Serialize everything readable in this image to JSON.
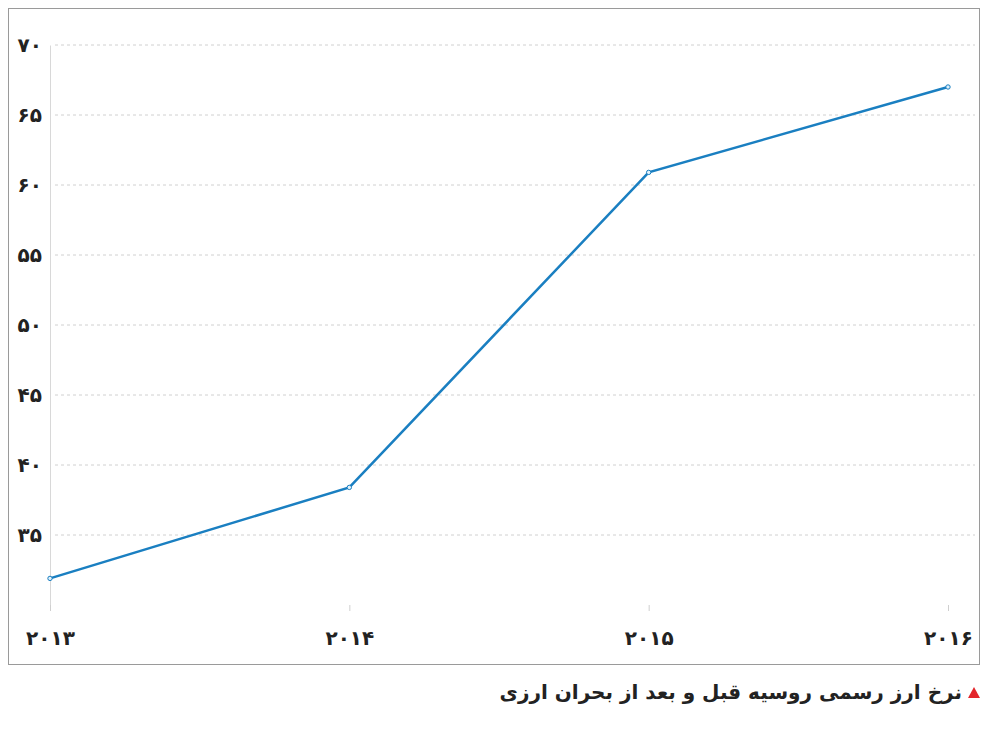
{
  "chart_data": {
    "type": "line",
    "title": "نرخ ارز رسمی روسیه قبل و بعد از بحران ارزی",
    "categories": [
      "۲۰۱۳",
      "۲۰۱۴",
      "۲۰۱۵",
      "۲۰۱۶"
    ],
    "values": [
      31.9,
      38.4,
      60.9,
      67.0
    ],
    "color": "#1a7fc1",
    "marker": "circle",
    "ylim": [
      30,
      70
    ],
    "yticks": [
      {
        "value": 35,
        "label": "۳۵"
      },
      {
        "value": 40,
        "label": "۴۰"
      },
      {
        "value": 45,
        "label": "۴۵"
      },
      {
        "value": 50,
        "label": "۵۰"
      },
      {
        "value": 55,
        "label": "۵۵"
      },
      {
        "value": 60,
        "label": "۶۰"
      },
      {
        "value": 65,
        "label": "۶۵"
      },
      {
        "value": 70,
        "label": "۷۰"
      }
    ],
    "grid": true
  }
}
